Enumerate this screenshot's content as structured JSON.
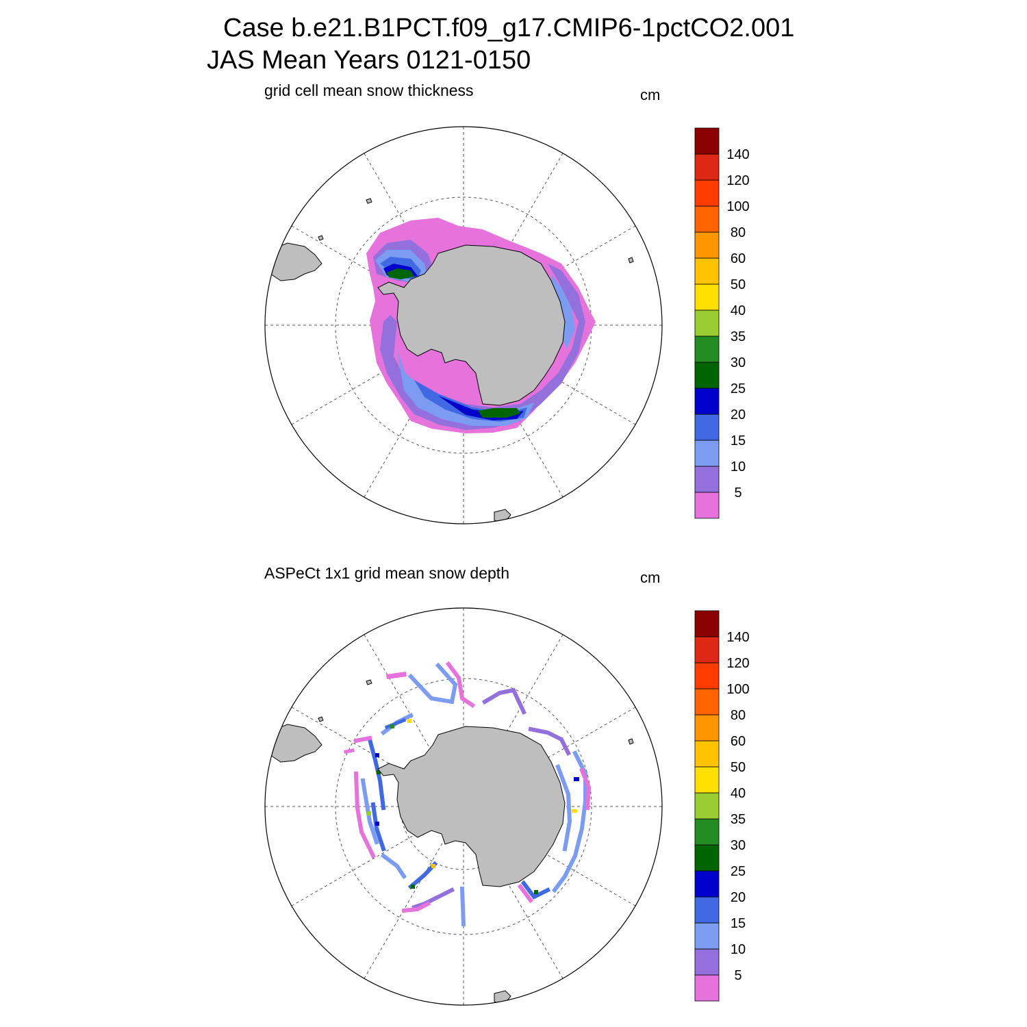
{
  "title": {
    "case": "Case b.e21.B1PCT.f09_g17.CMIP6-1pctCO2.001",
    "period": "JAS Mean   Years 0121-0150"
  },
  "panels": [
    {
      "id": "model",
      "title": "grid cell mean snow thickness",
      "units": "cm"
    },
    {
      "id": "obs",
      "title": "ASPeCt 1x1 grid mean snow depth",
      "units": "cm"
    }
  ],
  "colorbar": {
    "levels": [
      "5",
      "10",
      "15",
      "20",
      "25",
      "30",
      "35",
      "40",
      "50",
      "60",
      "80",
      "100",
      "120",
      "140"
    ],
    "colors": [
      "#e673db",
      "#9370db",
      "#7b9cf0",
      "#4169e1",
      "#0000cd",
      "#006400",
      "#228b22",
      "#9acd32",
      "#ffe000",
      "#ffc300",
      "#ff9500",
      "#ff6400",
      "#ff3c00",
      "#dc2814",
      "#8b0000"
    ]
  },
  "colors": {
    "land": "#bebebe",
    "background": "#ffffff",
    "gridline": "#555555"
  }
}
